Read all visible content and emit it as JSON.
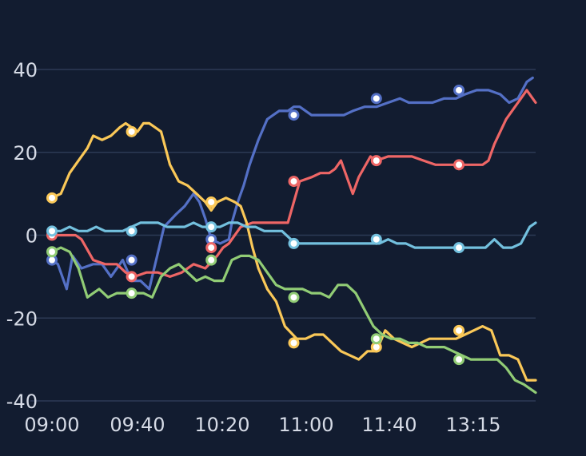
{
  "chart_data": {
    "type": "line",
    "title": "",
    "xlabel": "",
    "ylabel": "",
    "ylim": [
      -40,
      40
    ],
    "yticks": [
      -40,
      -20,
      0,
      20,
      40
    ],
    "x_tick_labels": [
      "09:00",
      "09:40",
      "10:20",
      "11:00",
      "11:40",
      "13:15"
    ],
    "grid": true,
    "legend": "none",
    "series": [
      {
        "color": "#5470c6",
        "points": [
          [
            0,
            -6
          ],
          [
            2,
            -7
          ],
          [
            5,
            -13
          ],
          [
            7,
            -5
          ],
          [
            10,
            -8
          ],
          [
            14,
            -7
          ],
          [
            17,
            -7
          ],
          [
            20,
            -10
          ],
          [
            24,
            -6
          ],
          [
            27,
            -11
          ],
          [
            30,
            -11
          ],
          [
            33,
            -13
          ],
          [
            36,
            -4
          ],
          [
            38,
            2
          ],
          [
            42,
            5
          ],
          [
            45,
            7
          ],
          [
            48,
            10
          ],
          [
            50,
            8
          ],
          [
            52,
            4
          ],
          [
            54,
            -1
          ],
          [
            57,
            -2
          ],
          [
            60,
            -1
          ],
          [
            61,
            3
          ],
          [
            63,
            8
          ],
          [
            65,
            12
          ],
          [
            67,
            17
          ],
          [
            70,
            23
          ],
          [
            73,
            28
          ],
          [
            75,
            29
          ],
          [
            77,
            30
          ],
          [
            80,
            30
          ],
          [
            82,
            31
          ],
          [
            84,
            31
          ],
          [
            86,
            30
          ],
          [
            88,
            29
          ],
          [
            91,
            29
          ],
          [
            95,
            29
          ],
          [
            99,
            29
          ],
          [
            102,
            30
          ],
          [
            106,
            31
          ],
          [
            110,
            31
          ],
          [
            114,
            32
          ],
          [
            118,
            33
          ],
          [
            121,
            32
          ],
          [
            125,
            32
          ],
          [
            129,
            32
          ],
          [
            133,
            33
          ],
          [
            137,
            33
          ],
          [
            140,
            34
          ],
          [
            144,
            35
          ],
          [
            148,
            35
          ],
          [
            152,
            34
          ],
          [
            155,
            32
          ],
          [
            158,
            33
          ],
          [
            161,
            37
          ],
          [
            163,
            38
          ]
        ]
      },
      {
        "color": "#ee6666",
        "points": [
          [
            0,
            0
          ],
          [
            4,
            0
          ],
          [
            8,
            0
          ],
          [
            10,
            -1
          ],
          [
            14,
            -6
          ],
          [
            18,
            -7
          ],
          [
            22,
            -7
          ],
          [
            25,
            -9
          ],
          [
            28,
            -10
          ],
          [
            32,
            -9
          ],
          [
            36,
            -9
          ],
          [
            40,
            -10
          ],
          [
            44,
            -9
          ],
          [
            48,
            -7
          ],
          [
            52,
            -8
          ],
          [
            56,
            -5
          ],
          [
            58,
            -3
          ],
          [
            60,
            -2
          ],
          [
            64,
            2
          ],
          [
            68,
            3
          ],
          [
            72,
            3
          ],
          [
            76,
            3
          ],
          [
            80,
            3
          ],
          [
            84,
            13
          ],
          [
            88,
            14
          ],
          [
            91,
            15
          ],
          [
            94,
            15
          ],
          [
            96,
            16
          ],
          [
            98,
            18
          ],
          [
            100,
            14
          ],
          [
            102,
            10
          ],
          [
            104,
            14
          ],
          [
            108,
            19
          ],
          [
            110,
            18
          ],
          [
            114,
            19
          ],
          [
            118,
            19
          ],
          [
            122,
            19
          ],
          [
            126,
            18
          ],
          [
            130,
            17
          ],
          [
            134,
            17
          ],
          [
            138,
            17
          ],
          [
            144,
            17
          ],
          [
            146,
            17
          ],
          [
            148,
            18
          ],
          [
            150,
            22
          ],
          [
            154,
            28
          ],
          [
            158,
            32
          ],
          [
            161,
            35
          ],
          [
            163,
            33
          ],
          [
            164,
            32
          ]
        ]
      },
      {
        "color": "#fac858",
        "points": [
          [
            0,
            9
          ],
          [
            3,
            10
          ],
          [
            6,
            15
          ],
          [
            9,
            18
          ],
          [
            12,
            21
          ],
          [
            14,
            24
          ],
          [
            17,
            23
          ],
          [
            20,
            24
          ],
          [
            23,
            26
          ],
          [
            25,
            27
          ],
          [
            27,
            26
          ],
          [
            29,
            25
          ],
          [
            31,
            27
          ],
          [
            33,
            27
          ],
          [
            35,
            26
          ],
          [
            37,
            25
          ],
          [
            40,
            17
          ],
          [
            43,
            13
          ],
          [
            46,
            12
          ],
          [
            49,
            10
          ],
          [
            52,
            8
          ],
          [
            54,
            6
          ],
          [
            56,
            8
          ],
          [
            59,
            9
          ],
          [
            62,
            8
          ],
          [
            64,
            7
          ],
          [
            66,
            3
          ],
          [
            68,
            -3
          ],
          [
            70,
            -8
          ],
          [
            73,
            -13
          ],
          [
            76,
            -16
          ],
          [
            79,
            -22
          ],
          [
            83,
            -25
          ],
          [
            86,
            -25
          ],
          [
            89,
            -24
          ],
          [
            92,
            -24
          ],
          [
            95,
            -26
          ],
          [
            98,
            -28
          ],
          [
            101,
            -29
          ],
          [
            104,
            -30
          ],
          [
            107,
            -28
          ],
          [
            110,
            -28
          ],
          [
            113,
            -23
          ],
          [
            116,
            -25
          ],
          [
            119,
            -26
          ],
          [
            122,
            -27
          ],
          [
            125,
            -26
          ],
          [
            128,
            -25
          ],
          [
            131,
            -25
          ],
          [
            134,
            -25
          ],
          [
            137,
            -25
          ],
          [
            140,
            -24
          ],
          [
            143,
            -23
          ],
          [
            146,
            -22
          ],
          [
            149,
            -23
          ],
          [
            152,
            -29
          ],
          [
            155,
            -29
          ],
          [
            158,
            -30
          ],
          [
            161,
            -35
          ],
          [
            164,
            -35
          ]
        ]
      },
      {
        "color": "#91cc75",
        "points": [
          [
            0,
            -4
          ],
          [
            3,
            -3
          ],
          [
            6,
            -4
          ],
          [
            9,
            -8
          ],
          [
            12,
            -15
          ],
          [
            14,
            -14
          ],
          [
            16,
            -13
          ],
          [
            19,
            -15
          ],
          [
            22,
            -14
          ],
          [
            25,
            -14
          ],
          [
            28,
            -14
          ],
          [
            31,
            -14
          ],
          [
            34,
            -15
          ],
          [
            37,
            -10
          ],
          [
            40,
            -8
          ],
          [
            43,
            -7
          ],
          [
            46,
            -9
          ],
          [
            49,
            -11
          ],
          [
            52,
            -10
          ],
          [
            55,
            -11
          ],
          [
            58,
            -11
          ],
          [
            61,
            -6
          ],
          [
            64,
            -5
          ],
          [
            67,
            -5
          ],
          [
            70,
            -6
          ],
          [
            73,
            -9
          ],
          [
            76,
            -12
          ],
          [
            79,
            -13
          ],
          [
            82,
            -13
          ],
          [
            85,
            -13
          ],
          [
            88,
            -14
          ],
          [
            91,
            -14
          ],
          [
            94,
            -15
          ],
          [
            97,
            -12
          ],
          [
            100,
            -12
          ],
          [
            103,
            -14
          ],
          [
            106,
            -18
          ],
          [
            109,
            -22
          ],
          [
            112,
            -24
          ],
          [
            115,
            -25
          ],
          [
            118,
            -25
          ],
          [
            121,
            -26
          ],
          [
            124,
            -26
          ],
          [
            127,
            -27
          ],
          [
            130,
            -27
          ],
          [
            133,
            -27
          ],
          [
            136,
            -28
          ],
          [
            139,
            -29
          ],
          [
            142,
            -30
          ],
          [
            145,
            -30
          ],
          [
            148,
            -30
          ],
          [
            151,
            -30
          ],
          [
            154,
            -32
          ],
          [
            157,
            -35
          ],
          [
            160,
            -36
          ],
          [
            164,
            -38
          ]
        ]
      },
      {
        "color": "#73c0de",
        "points": [
          [
            0,
            1
          ],
          [
            3,
            1
          ],
          [
            6,
            2
          ],
          [
            9,
            1
          ],
          [
            12,
            1
          ],
          [
            15,
            2
          ],
          [
            18,
            1
          ],
          [
            21,
            1
          ],
          [
            24,
            1
          ],
          [
            27,
            2
          ],
          [
            30,
            3
          ],
          [
            33,
            3
          ],
          [
            36,
            3
          ],
          [
            39,
            2
          ],
          [
            42,
            2
          ],
          [
            45,
            2
          ],
          [
            48,
            3
          ],
          [
            51,
            2
          ],
          [
            54,
            2
          ],
          [
            57,
            2
          ],
          [
            60,
            3
          ],
          [
            63,
            3
          ],
          [
            66,
            2
          ],
          [
            69,
            2
          ],
          [
            72,
            1
          ],
          [
            75,
            1
          ],
          [
            78,
            1
          ],
          [
            81,
            -1
          ],
          [
            84,
            -2
          ],
          [
            87,
            -2
          ],
          [
            90,
            -2
          ],
          [
            93,
            -2
          ],
          [
            96,
            -2
          ],
          [
            99,
            -2
          ],
          [
            102,
            -2
          ],
          [
            105,
            -2
          ],
          [
            108,
            -2
          ],
          [
            111,
            -2
          ],
          [
            114,
            -1
          ],
          [
            117,
            -2
          ],
          [
            120,
            -2
          ],
          [
            123,
            -3
          ],
          [
            126,
            -3
          ],
          [
            129,
            -3
          ],
          [
            132,
            -3
          ],
          [
            135,
            -3
          ],
          [
            138,
            -3
          ],
          [
            141,
            -3
          ],
          [
            144,
            -3
          ],
          [
            147,
            -3
          ],
          [
            150,
            -1
          ],
          [
            153,
            -3
          ],
          [
            156,
            -3
          ],
          [
            159,
            -2
          ],
          [
            162,
            2
          ],
          [
            164,
            3
          ]
        ]
      }
    ],
    "markers": [
      {
        "series": 0,
        "points": [
          [
            0,
            -6
          ],
          [
            27,
            -6
          ],
          [
            54,
            -1
          ],
          [
            82,
            29
          ],
          [
            110,
            33
          ],
          [
            138,
            35
          ]
        ]
      },
      {
        "series": 1,
        "points": [
          [
            0,
            0
          ],
          [
            27,
            -10
          ],
          [
            54,
            -3
          ],
          [
            82,
            13
          ],
          [
            110,
            18
          ],
          [
            138,
            17
          ]
        ]
      },
      {
        "series": 2,
        "points": [
          [
            0,
            9
          ],
          [
            27,
            25
          ],
          [
            54,
            8
          ],
          [
            82,
            -26
          ],
          [
            110,
            -27
          ],
          [
            138,
            -23
          ]
        ]
      },
      {
        "series": 3,
        "points": [
          [
            0,
            -4
          ],
          [
            27,
            -14
          ],
          [
            54,
            -6
          ],
          [
            82,
            -15
          ],
          [
            110,
            -25
          ],
          [
            138,
            -30
          ]
        ]
      },
      {
        "series": 4,
        "points": [
          [
            0,
            1
          ],
          [
            27,
            1
          ],
          [
            54,
            2
          ],
          [
            82,
            -2
          ],
          [
            110,
            -1
          ],
          [
            138,
            -3
          ]
        ]
      }
    ]
  }
}
